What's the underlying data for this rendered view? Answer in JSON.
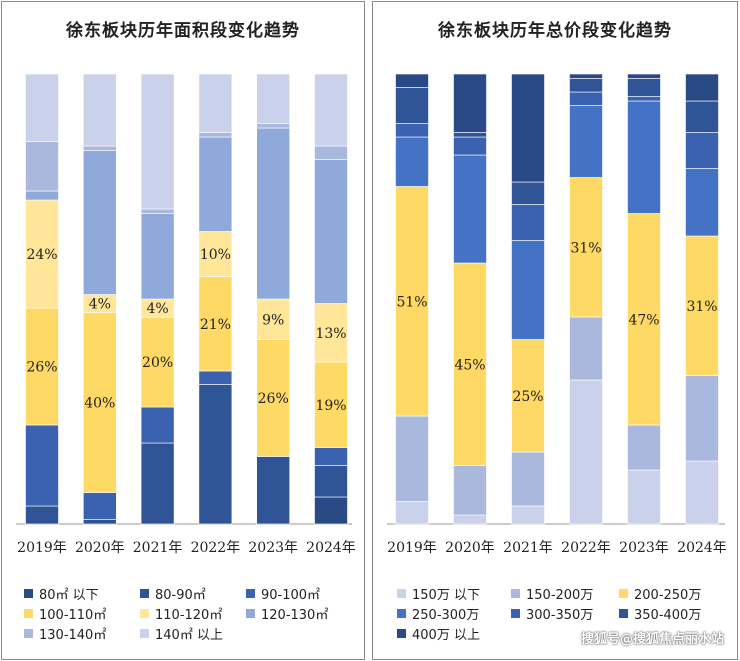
{
  "colors": {
    "navy": "#2a4a85",
    "blue_dark": "#2f5597",
    "blue_mid": "#3a62b0",
    "blue": "#4472c4",
    "yellow": "#ffd966",
    "yellow_light": "#ffe699",
    "periwinkle": "#8fa9db",
    "lavender": "#a9b8dc",
    "pale": "#c9d2ea"
  },
  "chart_data": [
    {
      "type": "bar",
      "stacked": true,
      "title": "徐东板块历年面积段变化趋势",
      "categories": [
        "2019年",
        "2020年",
        "2021年",
        "2022年",
        "2023年",
        "2024年"
      ],
      "ylim": [
        0,
        100
      ],
      "series": [
        {
          "name": "80㎡ 以下",
          "color": "#2a4a85",
          "values": [
            0,
            0,
            0,
            0,
            0,
            6
          ]
        },
        {
          "name": "80-90㎡",
          "color": "#2f5597",
          "values": [
            4,
            1,
            18,
            31,
            15,
            7
          ]
        },
        {
          "name": "90-100㎡",
          "color": "#3a62b0",
          "values": [
            18,
            6,
            8,
            3,
            0,
            4
          ]
        },
        {
          "name": "100-110㎡",
          "color": "#ffd966",
          "values": [
            26,
            40,
            20,
            21,
            26,
            19
          ]
        },
        {
          "name": "110-120㎡",
          "color": "#ffe699",
          "values": [
            24,
            4,
            4,
            10,
            9,
            13
          ]
        },
        {
          "name": "120-130㎡",
          "color": "#8fa9db",
          "values": [
            2,
            32,
            19,
            21,
            38,
            32
          ]
        },
        {
          "name": "130-140㎡",
          "color": "#a9b8dc",
          "values": [
            11,
            1,
            1,
            1,
            1,
            3
          ]
        },
        {
          "name": "140㎡ 以上",
          "color": "#c9d2ea",
          "values": [
            15,
            16,
            30,
            13,
            11,
            16
          ]
        }
      ],
      "data_labels": [
        {
          "series": "110-120㎡",
          "category": "2019年",
          "text": "24%"
        },
        {
          "series": "100-110㎡",
          "category": "2019年",
          "text": "26%"
        },
        {
          "series": "110-120㎡",
          "category": "2020年",
          "text": "4%"
        },
        {
          "series": "100-110㎡",
          "category": "2020年",
          "text": "40%"
        },
        {
          "series": "110-120㎡",
          "category": "2021年",
          "text": "4%"
        },
        {
          "series": "100-110㎡",
          "category": "2021年",
          "text": "20%"
        },
        {
          "series": "110-120㎡",
          "category": "2022年",
          "text": "10%"
        },
        {
          "series": "100-110㎡",
          "category": "2022年",
          "text": "21%"
        },
        {
          "series": "110-120㎡",
          "category": "2023年",
          "text": "9%"
        },
        {
          "series": "100-110㎡",
          "category": "2023年",
          "text": "26%"
        },
        {
          "series": "110-120㎡",
          "category": "2024年",
          "text": "13%"
        },
        {
          "series": "100-110㎡",
          "category": "2024年",
          "text": "19%"
        }
      ],
      "legend_position": "bottom"
    },
    {
      "type": "bar",
      "stacked": true,
      "title": "徐东板块历年总价段变化趋势",
      "categories": [
        "2019年",
        "2020年",
        "2021年",
        "2022年",
        "2023年",
        "2024年"
      ],
      "ylim": [
        0,
        100
      ],
      "series": [
        {
          "name": "150万 以下",
          "color": "#c9d2ea",
          "values": [
            5,
            2,
            4,
            32,
            12,
            14
          ]
        },
        {
          "name": "150-200万",
          "color": "#a9b8dc",
          "values": [
            19,
            11,
            12,
            14,
            10,
            19
          ]
        },
        {
          "name": "200-250万",
          "color": "#ffd966",
          "values": [
            51,
            45,
            25,
            31,
            47,
            31
          ]
        },
        {
          "name": "250-300万",
          "color": "#4472c4",
          "values": [
            11,
            24,
            22,
            16,
            25,
            15
          ]
        },
        {
          "name": "300-350万",
          "color": "#3a62b0",
          "values": [
            3,
            4,
            8,
            3,
            1,
            8
          ]
        },
        {
          "name": "350-400万",
          "color": "#2f5597",
          "values": [
            8,
            1,
            5,
            3,
            4,
            7
          ]
        },
        {
          "name": "400万 以上",
          "color": "#2a4a85",
          "values": [
            3,
            13,
            24,
            1,
            1,
            6
          ]
        }
      ],
      "data_labels": [
        {
          "series": "200-250万",
          "category": "2019年",
          "text": "51%"
        },
        {
          "series": "200-250万",
          "category": "2020年",
          "text": "45%"
        },
        {
          "series": "200-250万",
          "category": "2021年",
          "text": "25%"
        },
        {
          "series": "200-250万",
          "category": "2022年",
          "text": "31%"
        },
        {
          "series": "200-250万",
          "category": "2023年",
          "text": "47%"
        },
        {
          "series": "200-250万",
          "category": "2024年",
          "text": "31%"
        }
      ],
      "legend_position": "bottom"
    }
  ],
  "watermark": "搜狐号@搜狐焦点丽水站"
}
